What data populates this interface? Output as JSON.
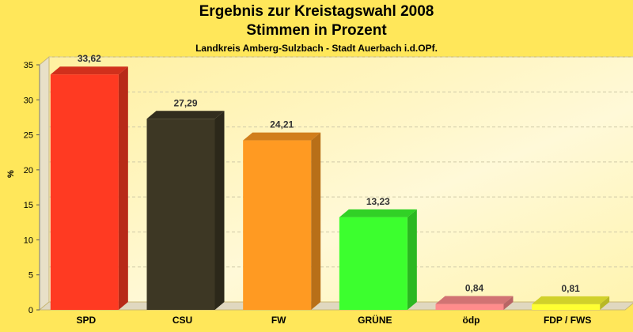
{
  "chart_data": {
    "type": "bar",
    "title": "Ergebnis zur Kreistagswahl 2008",
    "title2": "Stimmen in Prozent",
    "subtitle": "Landkreis Amberg-Sulzbach - Stadt Auerbach i.d.OPf.",
    "ylabel": "%",
    "xlabel": "",
    "ylim": [
      0,
      35
    ],
    "yticks": [
      "0",
      "5",
      "10",
      "15",
      "20",
      "25",
      "30",
      "35"
    ],
    "grid": true,
    "categories": [
      "SPD",
      "CSU",
      "FW",
      "GRÜNE",
      "ödp",
      "FDP / FWS"
    ],
    "values": [
      33.62,
      27.29,
      24.21,
      13.23,
      0.84,
      0.81
    ],
    "value_labels": [
      "33,62",
      "27,29",
      "24,21",
      "13,23",
      "0,84",
      "0,81"
    ],
    "colors": [
      "#FF3A22",
      "#3D3724",
      "#FF9A22",
      "#3CFF2E",
      "#FF8C8C",
      "#FFFF33"
    ]
  }
}
